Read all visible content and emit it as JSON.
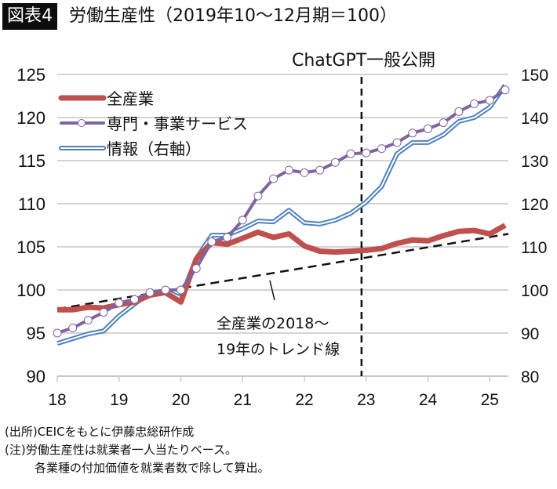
{
  "header": {
    "badge": "図表4",
    "title": "労働生産性（2019年10～12月期＝100）"
  },
  "notes": [
    "(出所)CEICをもとに伊藤忠総研作成",
    "(注)労働生産性は就業者一人当たりベース。",
    "各業種の付加価値を就業者数で除して算出。"
  ],
  "chart_data": {
    "type": "line",
    "title": "労働生産性（2019年10～12月期＝100）",
    "x_ticks": [
      "18",
      "19",
      "20",
      "21",
      "22",
      "23",
      "24",
      "25"
    ],
    "x_start_year": 2018,
    "frequency": "quarterly",
    "left_axis": {
      "ylim": [
        90,
        125
      ],
      "ticks": [
        "125",
        "120",
        "115",
        "110",
        "105",
        "100",
        "95",
        "90"
      ]
    },
    "right_axis": {
      "ylim": [
        80,
        150
      ],
      "ticks": [
        "150",
        "140",
        "130",
        "120",
        "110",
        "100",
        "90",
        "80"
      ]
    },
    "grid": true,
    "legend_position": "top-left",
    "series": [
      {
        "name": "全産業",
        "axis": "left",
        "color": "#c0504d",
        "style": "thick",
        "values": [
          97.7,
          97.7,
          98.0,
          97.9,
          98.3,
          98.6,
          99.4,
          99.7,
          98.6,
          103.6,
          105.5,
          105.3,
          106.0,
          106.7,
          106.1,
          106.5,
          105.1,
          104.5,
          104.4,
          104.5,
          104.6,
          104.8,
          105.4,
          105.8,
          105.7,
          106.3,
          106.8,
          106.9,
          106.5,
          107.5
        ]
      },
      {
        "name": "専門・事業サービス",
        "axis": "left",
        "color": "#8064a2",
        "style": "markers",
        "values": [
          95.0,
          95.6,
          96.5,
          97.4,
          98.5,
          98.9,
          99.7,
          100.0,
          100.0,
          102.5,
          105.6,
          106.1,
          108.1,
          110.9,
          112.9,
          113.9,
          113.6,
          113.9,
          114.8,
          115.8,
          115.9,
          116.4,
          117.1,
          118.2,
          118.7,
          119.4,
          120.7,
          121.6,
          122.0,
          123.2
        ]
      },
      {
        "name": "情報（右軸）",
        "axis": "right",
        "color": "#4f81bd",
        "style": "double",
        "values": [
          87.6,
          88.7,
          89.8,
          90.5,
          94.0,
          96.7,
          99.3,
          99.8,
          98.2,
          107.3,
          112.7,
          112.7,
          114.2,
          116.0,
          115.8,
          118.5,
          115.6,
          115.3,
          116.2,
          117.8,
          120.4,
          124.0,
          131.6,
          134.2,
          134.2,
          136.0,
          139.1,
          140.0,
          142.4,
          147.5
        ]
      }
    ],
    "trend_line": {
      "label": "全産業の2018～19年のトレンド線",
      "axis": "left",
      "start_value": 97.8,
      "end_value": 106.5
    },
    "annotations": [
      {
        "text": "ChatGPT一般公開",
        "at_x": "2022Q4"
      }
    ],
    "trend_label_lines": [
      "全産業の2018～",
      "19年のトレンド線"
    ]
  }
}
